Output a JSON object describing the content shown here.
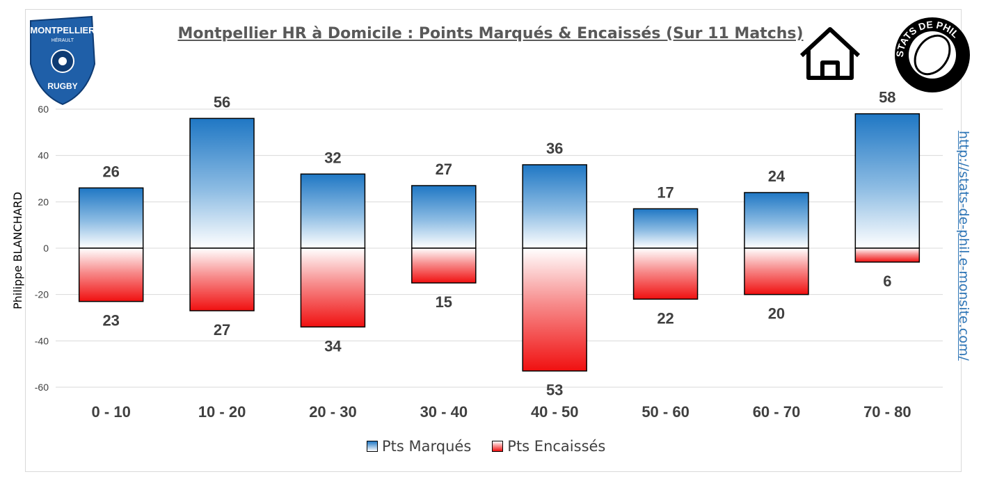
{
  "title": "Montpellier HR à Domicile : Points Marqués & Encaissés (Sur 11 Matchs)",
  "author": "Philippe BLANCHARD",
  "url": "http://stats-de-phil.e-monsite.com/",
  "logos": {
    "club_top": "MONTPELLIER",
    "club_sub": "HÉRAULT",
    "club_bottom": "RUGBY",
    "stats": "STATS DE PHIL"
  },
  "icons": {
    "home": "home-icon"
  },
  "chart_data": {
    "type": "bar",
    "title": "Montpellier HR à Domicile : Points Marqués & Encaissés (Sur 11 Matchs)",
    "categories": [
      "0 - 10",
      "10 - 20",
      "20 - 30",
      "30 - 40",
      "40 - 50",
      "50 - 60",
      "60 - 70",
      "70 - 80"
    ],
    "series": [
      {
        "name": "Pts Marqués",
        "values": [
          26,
          56,
          32,
          27,
          36,
          17,
          24,
          58
        ],
        "color": "#1f77c4"
      },
      {
        "name": "Pts Encaissés",
        "values": [
          23,
          27,
          34,
          15,
          53,
          22,
          20,
          6
        ],
        "color": "#f01010"
      }
    ],
    "yticks": [
      60,
      40,
      20,
      0,
      -20,
      -40,
      -60
    ],
    "ylim": [
      -60,
      60
    ],
    "grid": true,
    "legend": "bottom"
  }
}
